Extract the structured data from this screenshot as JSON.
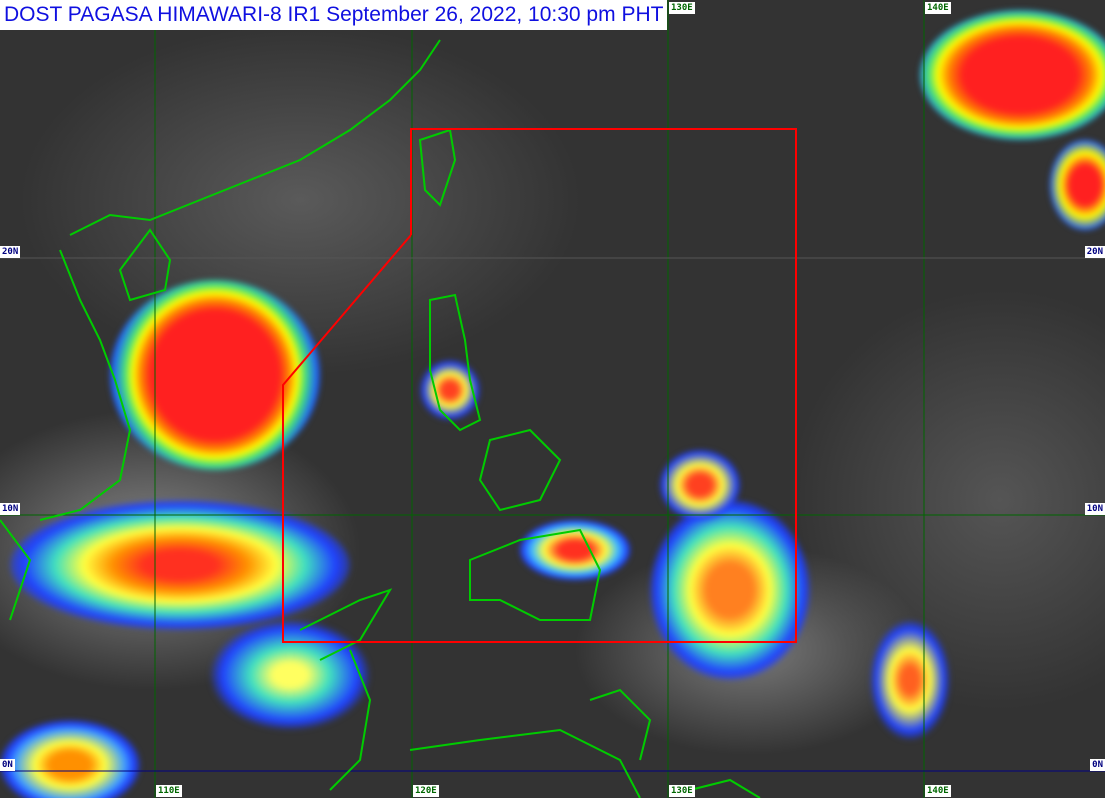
{
  "title": {
    "text": "DOST PAGASA HIMAWARI-8 IR1 September 26, 2022, 10:30 pm",
    "timezone": "PHT"
  },
  "longitude_labels": [
    "110E",
    "120E",
    "130E",
    "140E"
  ],
  "latitude_labels": [
    "20N",
    "10N",
    "0N"
  ],
  "colors": {
    "coastline": "#00cc00",
    "graticule": "#006600",
    "equator": "#000080",
    "area_box": "#ff0000",
    "title_text": "#1010e0"
  }
}
